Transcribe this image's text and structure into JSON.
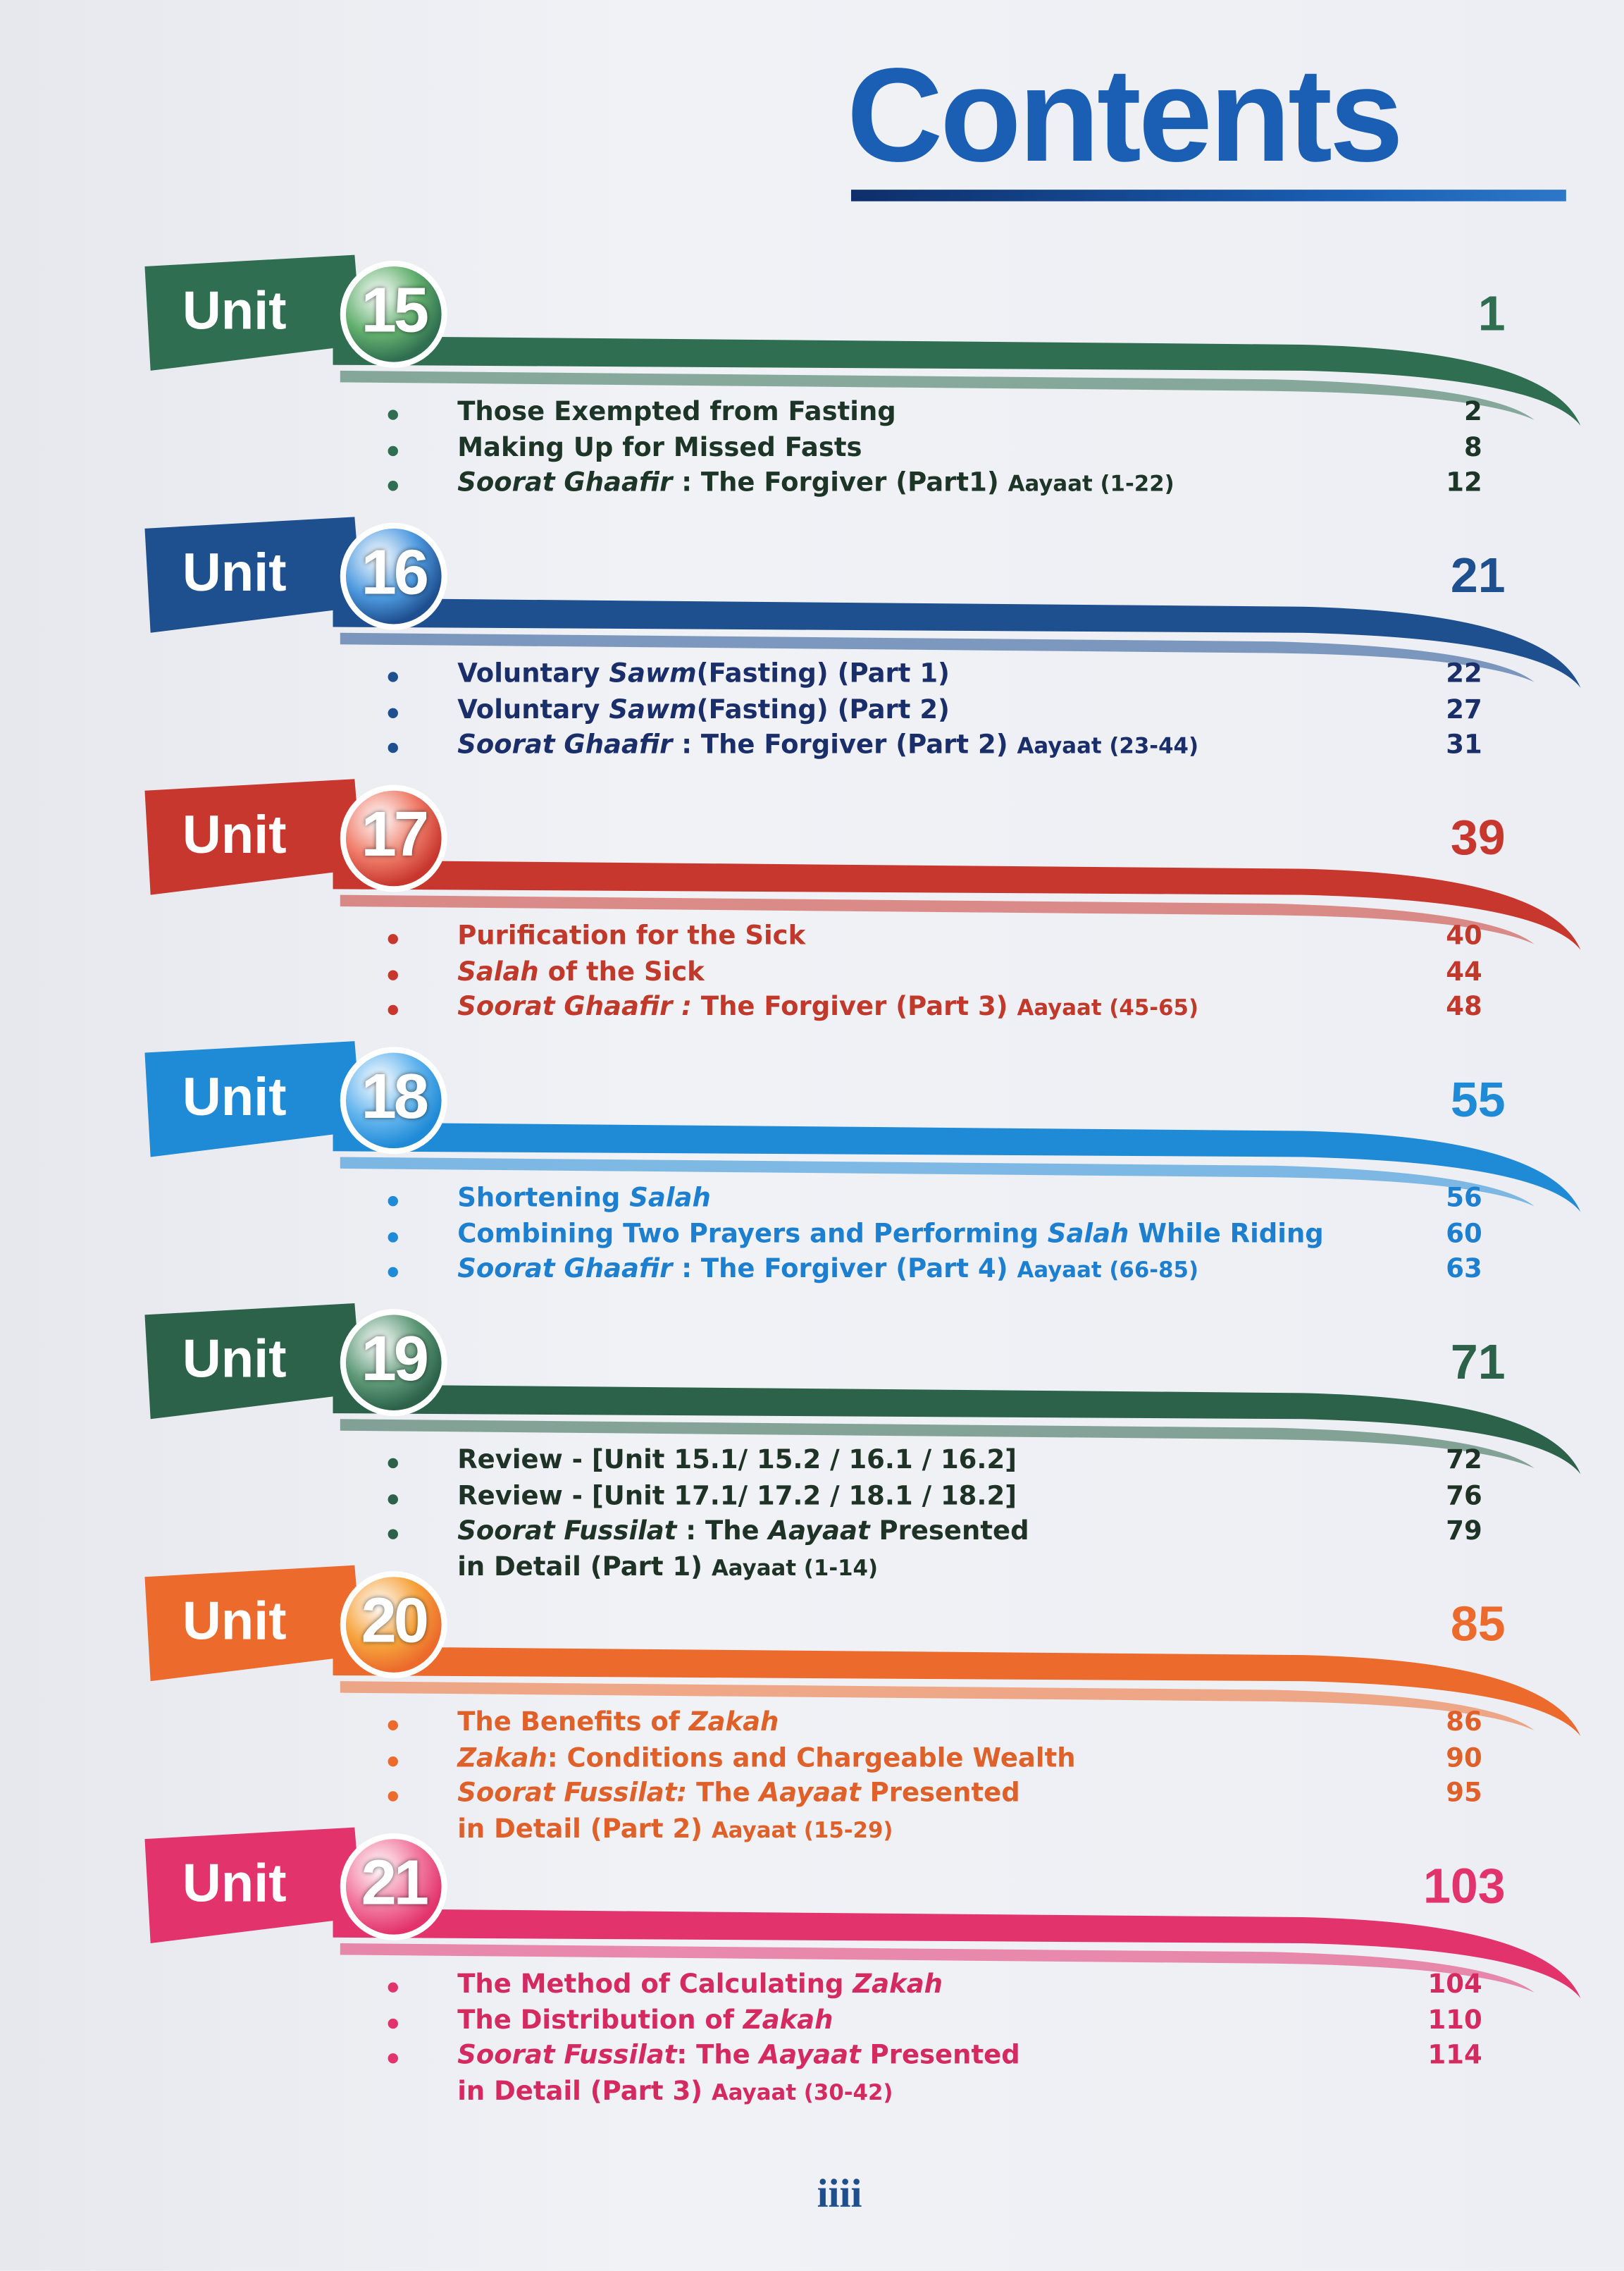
{
  "title": "Contents",
  "units": [
    {
      "label": "Unit",
      "number": "15",
      "page": 1,
      "color": "#2f6e50",
      "circle_color": "#63b06f",
      "text_color": "#1d3526",
      "entries": [
        {
          "lines": [
            [
              "Those Exempted from Fasting"
            ]
          ],
          "page": 2
        },
        {
          "lines": [
            [
              "Making Up for Missed Fasts"
            ]
          ],
          "page": 8
        },
        {
          "lines": [
            [
              {
                "text": "Soorat Ghaafir",
                "italic": true
              },
              " : The Forgiver (Part1) ",
              {
                "text": "Aayaat (1-22)",
                "small": true
              }
            ]
          ],
          "page": 12
        }
      ]
    },
    {
      "label": "Unit",
      "number": "16",
      "page": 21,
      "color": "#1e4f8f",
      "circle_color": "#4f9be0",
      "text_color": "#1a2f6a",
      "entries": [
        {
          "lines": [
            [
              "Voluntary ",
              {
                "text": "Sawm",
                "italic": true
              },
              "(Fasting) (Part 1)"
            ]
          ],
          "page": 22
        },
        {
          "lines": [
            [
              "Voluntary ",
              {
                "text": "Sawm",
                "italic": true
              },
              "(Fasting) (Part 2)"
            ]
          ],
          "page": 27
        },
        {
          "lines": [
            [
              {
                "text": "Soorat Ghaafir",
                "italic": true
              },
              " : The Forgiver (Part 2) ",
              {
                "text": "Aayaat (23-44)",
                "small": true
              }
            ]
          ],
          "page": 31
        }
      ]
    },
    {
      "label": "Unit",
      "number": "17",
      "page": 39,
      "color": "#c8372d",
      "circle_color": "#ef7b68",
      "text_color": "#c0392b",
      "entries": [
        {
          "lines": [
            [
              "Purification for the Sick"
            ]
          ],
          "page": 40
        },
        {
          "lines": [
            [
              {
                "text": "Salah",
                "italic": true
              },
              " of the Sick"
            ]
          ],
          "page": 44
        },
        {
          "lines": [
            [
              {
                "text": "Soorat Ghaafir :",
                "italic": true
              },
              " The Forgiver (Part 3) ",
              {
                "text": "Aayaat (45-65)",
                "small": true
              }
            ]
          ],
          "page": 48
        }
      ]
    },
    {
      "label": "Unit",
      "number": "18",
      "page": 55,
      "color": "#1f8ad6",
      "circle_color": "#62b4ee",
      "text_color": "#1c7fcf",
      "entries": [
        {
          "lines": [
            [
              "Shortening ",
              {
                "text": "Salah",
                "italic": true
              }
            ]
          ],
          "page": 56
        },
        {
          "lines": [
            [
              "Combining Two Prayers and Performing ",
              {
                "text": "Salah",
                "italic": true
              },
              " While Riding"
            ]
          ],
          "page": 60
        },
        {
          "lines": [
            [
              {
                "text": "Soorat Ghaafir",
                "italic": true
              },
              " : The Forgiver (Part 4) ",
              {
                "text": "Aayaat (66-85)",
                "small": true
              }
            ]
          ],
          "page": 63
        }
      ]
    },
    {
      "label": "Unit",
      "number": "19",
      "page": 71,
      "color": "#2b6249",
      "circle_color": "#5f9a78",
      "text_color": "#1e3326",
      "entries": [
        {
          "lines": [
            [
              "Review - [Unit 15.1/ 15.2 / 16.1 / 16.2]"
            ]
          ],
          "page": 72
        },
        {
          "lines": [
            [
              "Review - [Unit 17.1/ 17.2 / 18.1 / 18.2]"
            ]
          ],
          "page": 76
        },
        {
          "lines": [
            [
              {
                "text": "Soorat Fussilat",
                "italic": true
              },
              " : The ",
              {
                "text": "Aayaat",
                "italic": true
              },
              " Presented"
            ],
            [
              "in Detail (Part 1) ",
              {
                "text": "Aayaat (1-14)",
                "small": true
              }
            ]
          ],
          "page": 79
        }
      ]
    },
    {
      "label": "Unit",
      "number": "20",
      "page": 85,
      "color": "#ec6a2c",
      "circle_color": "#f6a33c",
      "text_color": "#e0602a",
      "entries": [
        {
          "lines": [
            [
              "The Benefits of ",
              {
                "text": "Zakah",
                "italic": true
              }
            ]
          ],
          "page": 86
        },
        {
          "lines": [
            [
              {
                "text": "Zakah",
                "italic": true
              },
              ": Conditions and Chargeable Wealth"
            ]
          ],
          "page": 90
        },
        {
          "lines": [
            [
              {
                "text": "Soorat Fussilat:",
                "italic": true
              },
              " The ",
              {
                "text": "Aayaat",
                "italic": true
              },
              " Presented"
            ],
            [
              "in Detail (Part 2) ",
              {
                "text": "Aayaat (15-29)",
                "small": true
              }
            ]
          ],
          "page": 95
        }
      ]
    },
    {
      "label": "Unit",
      "number": "21",
      "page": 103,
      "color": "#e2336d",
      "circle_color": "#f27aa0",
      "text_color": "#d42a60",
      "entries": [
        {
          "lines": [
            [
              "The Method of Calculating ",
              {
                "text": "Zakah",
                "italic": true
              }
            ]
          ],
          "page": 104
        },
        {
          "lines": [
            [
              "The Distribution of ",
              {
                "text": "Zakah",
                "italic": true
              }
            ]
          ],
          "page": 110
        },
        {
          "lines": [
            [
              {
                "text": "Soorat Fussilat",
                "italic": true
              },
              ": The ",
              {
                "text": "Aayaat",
                "italic": true
              },
              " Presented"
            ],
            [
              "in Detail (Part 3) ",
              {
                "text": "Aayaat (30-42)",
                "small": true
              }
            ]
          ],
          "page": 114
        }
      ]
    }
  ],
  "footer": "iiii"
}
